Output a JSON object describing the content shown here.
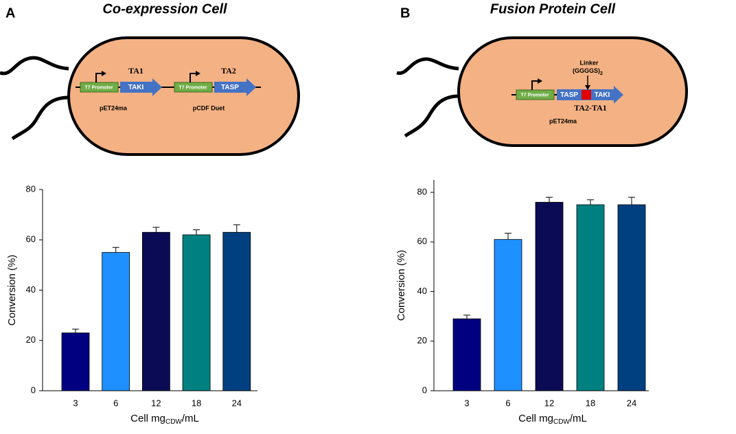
{
  "panels": [
    {
      "letter": "A",
      "title": "Co-expression Cell",
      "diagram": {
        "promoters": [
          "T7 Promoter",
          "T7 Promoter"
        ],
        "genes": [
          "TAKI",
          "TASP"
        ],
        "gene_labels": [
          "TA1",
          "TA2"
        ],
        "plasmids": [
          "pET24ma",
          "pCDF Duet"
        ]
      }
    },
    {
      "letter": "B",
      "title": "Fusion Protein Cell",
      "diagram": {
        "promoter": "T7 Promoter",
        "genes": [
          "TASP",
          "TAKI"
        ],
        "linker": [
          "Linker",
          "(GGGGS)",
          "2"
        ],
        "gene_label": "TA2-TA1",
        "plasmid": "pET24ma"
      }
    }
  ],
  "chart_data": [
    {
      "type": "bar",
      "categories": [
        "3",
        "6",
        "12",
        "18",
        "24"
      ],
      "values": [
        23,
        55,
        63,
        62,
        63
      ],
      "errors": [
        1.5,
        2,
        2,
        2,
        3
      ],
      "colors": [
        "#000080",
        "#1e90ff",
        "#0b0b55",
        "#008080",
        "#004080"
      ],
      "ylabel": "Conversion (%)",
      "xlabel": [
        "Cell mg",
        "CDW",
        "/mL"
      ],
      "ylim": [
        0,
        80
      ],
      "yticks": [
        0,
        20,
        40,
        60,
        80
      ]
    },
    {
      "type": "bar",
      "categories": [
        "3",
        "6",
        "12",
        "18",
        "24"
      ],
      "values": [
        29,
        61,
        76,
        75,
        75
      ],
      "errors": [
        1.5,
        2.5,
        2,
        2,
        3
      ],
      "colors": [
        "#000080",
        "#1e90ff",
        "#0b0b55",
        "#008080",
        "#004080"
      ],
      "ylabel": "Conversion (%)",
      "xlabel": [
        "Cell mg",
        "CDW",
        "/mL"
      ],
      "ylim": [
        0,
        85
      ],
      "yticks": [
        0,
        20,
        40,
        60,
        80
      ]
    }
  ]
}
